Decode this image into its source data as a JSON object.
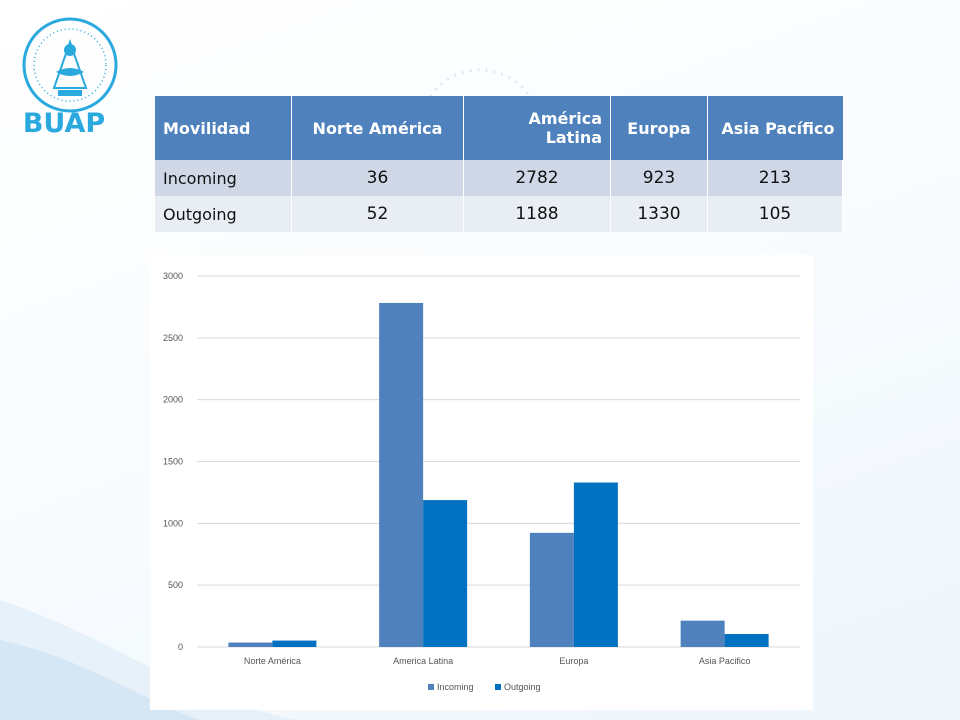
{
  "brand": {
    "logo_text": "BUAP"
  },
  "table": {
    "headers": [
      "Movilidad",
      "Norte América",
      "América Latina",
      "Europa",
      "Asia Pacífico"
    ],
    "rows": [
      {
        "label": "Incoming",
        "values": [
          "36",
          "2782",
          "923",
          "213"
        ]
      },
      {
        "label": "Outgoing",
        "values": [
          "52",
          "1188",
          "1330",
          "105"
        ]
      }
    ]
  },
  "chart_data": {
    "type": "bar",
    "categories": [
      "Norte América",
      "America Latina",
      "Europa",
      "Asia Pacifico"
    ],
    "series": [
      {
        "name": "Incoming",
        "values": [
          36,
          2782,
          923,
          213
        ],
        "color": "#4f81bd"
      },
      {
        "name": "Outgoing",
        "values": [
          52,
          1188,
          1330,
          105
        ],
        "color": "#0070c0"
      }
    ],
    "ylim": [
      0,
      3000
    ],
    "yticks": [
      "0",
      "500",
      "1000",
      "1500",
      "2000",
      "2500",
      "3000"
    ],
    "grid": true,
    "legend": "bottom"
  }
}
